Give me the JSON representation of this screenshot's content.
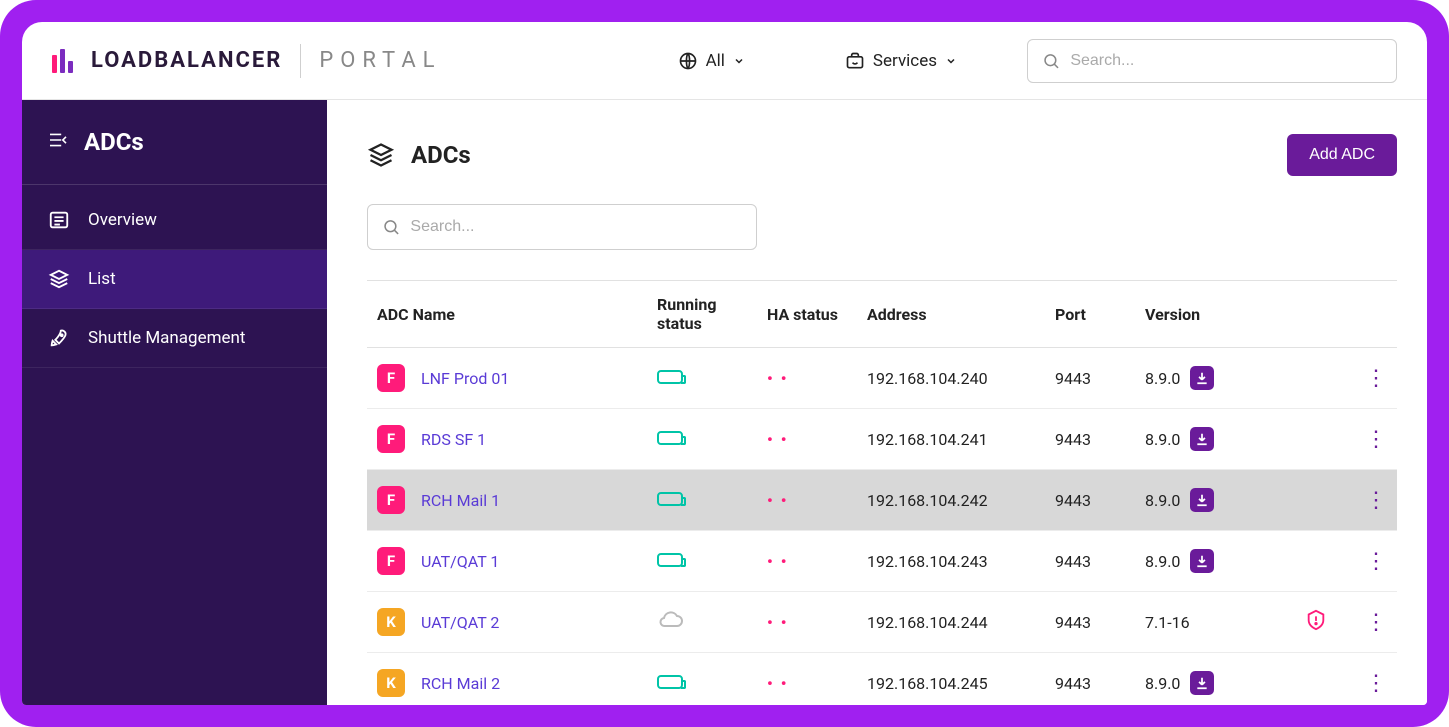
{
  "colors": {
    "frame": "#a020f0",
    "sidebar": "#2d1352",
    "sidebar_active": "#3e1a7a",
    "primary_button": "#6a1b9a",
    "link": "#5a3bd6",
    "badge_f": "#ff1b7a",
    "badge_k": "#f5a623",
    "running_ok": "#00c4a7",
    "row_highlight": "#d8d8d8"
  },
  "header": {
    "brand": "LOADBALANCER",
    "portal": "PORTAL",
    "scope_label": "All",
    "services_label": "Services",
    "search_placeholder": "Search..."
  },
  "sidebar": {
    "title": "ADCs",
    "items": [
      {
        "label": "Overview",
        "icon": "overview"
      },
      {
        "label": "List",
        "icon": "layers",
        "active": true
      },
      {
        "label": "Shuttle Management",
        "icon": "rocket"
      }
    ]
  },
  "page": {
    "title": "ADCs",
    "add_button": "Add ADC",
    "search_placeholder": "Search..."
  },
  "table": {
    "columns": [
      "ADC Name",
      "Running status",
      "HA status",
      "Address",
      "Port",
      "Version"
    ],
    "rows": [
      {
        "badge": "F",
        "name": "LNF Prod 01",
        "running": "ok",
        "ha": "pair",
        "address": "192.168.104.240",
        "port": "9443",
        "version": "8.9.0",
        "download": true,
        "warn": false,
        "highlight": false
      },
      {
        "badge": "F",
        "name": "RDS SF 1",
        "running": "ok",
        "ha": "pair",
        "address": "192.168.104.241",
        "port": "9443",
        "version": "8.9.0",
        "download": true,
        "warn": false,
        "highlight": false
      },
      {
        "badge": "F",
        "name": "RCH Mail 1",
        "running": "ok",
        "ha": "pair",
        "address": "192.168.104.242",
        "port": "9443",
        "version": "8.9.0",
        "download": true,
        "warn": false,
        "highlight": true
      },
      {
        "badge": "F",
        "name": "UAT/QAT 1",
        "running": "ok",
        "ha": "pair",
        "address": "192.168.104.243",
        "port": "9443",
        "version": "8.9.0",
        "download": true,
        "warn": false,
        "highlight": false
      },
      {
        "badge": "K",
        "name": "UAT/QAT 2",
        "running": "offline",
        "ha": "pair",
        "address": "192.168.104.244",
        "port": "9443",
        "version": "7.1-16",
        "download": false,
        "warn": true,
        "highlight": false
      },
      {
        "badge": "K",
        "name": "RCH Mail 2",
        "running": "ok",
        "ha": "pair",
        "address": "192.168.104.245",
        "port": "9443",
        "version": "8.9.0",
        "download": true,
        "warn": false,
        "highlight": false
      }
    ]
  }
}
